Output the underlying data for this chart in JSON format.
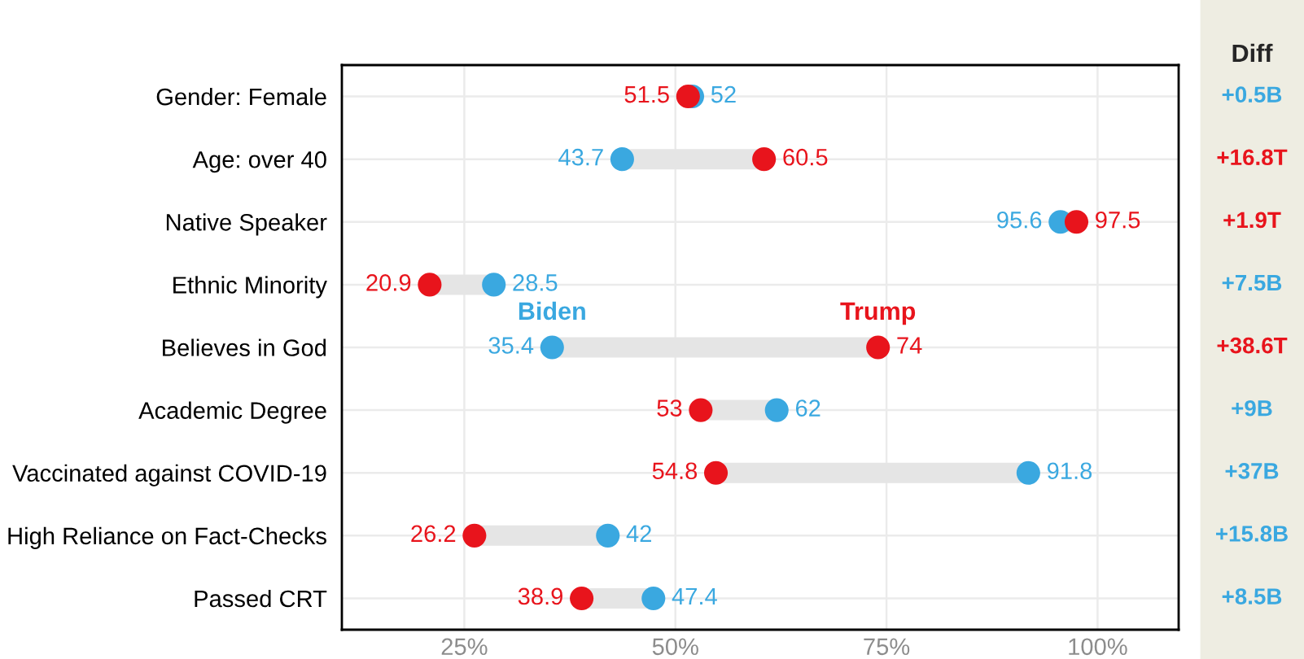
{
  "chart_data": {
    "type": "scatter",
    "orientation": "horizontal",
    "categories": [
      "Gender: Female",
      "Age: over 40",
      "Native Speaker",
      "Ethnic Minority",
      "Believes in God",
      "Academic Degree",
      "Vaccinated against COVID-19",
      "High Reliance on Fact-Checks",
      "Passed CRT"
    ],
    "series": [
      {
        "color": "#3aa8e0",
        "values": [
          52,
          43.7,
          95.6,
          28.5,
          35.4,
          62,
          91.8,
          42,
          47.4
        ]
      },
      {
        "color": "#e8141c",
        "values": [
          51.5,
          60.5,
          97.5,
          20.9,
          74,
          53,
          54.8,
          26.2,
          38.9
        ]
      }
    ],
    "data_labels": true,
    "xlim": [
      10.5,
      109.6
    ],
    "xticks": [
      {
        "value": 25,
        "label": "25%"
      },
      {
        "value": 50,
        "label": "50%"
      },
      {
        "value": 75,
        "label": "75%"
      },
      {
        "value": 100,
        "label": "100%"
      }
    ],
    "grid": true,
    "annotations": [
      {
        "text": "Biden",
        "x": 35.4,
        "y": "Believes in God"
      },
      {
        "text": "Trump",
        "x": 74,
        "y": "Believes in God"
      },
      "Diff",
      "+0.5B",
      "+16.8T",
      "+1.9T",
      "+7.5B",
      "+38.6T",
      "+9B",
      "+37B",
      "+15.8B",
      "+8.5B"
    ]
  }
}
